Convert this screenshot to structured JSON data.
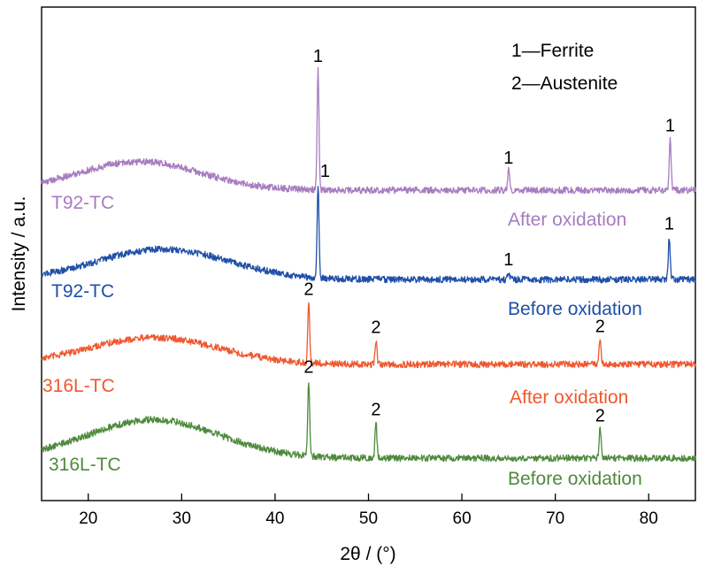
{
  "chart_data": {
    "type": "line",
    "xlabel": "2θ / (°)",
    "ylabel": "Intensity / a.u.",
    "xlim": [
      15,
      85
    ],
    "xticks": [
      20,
      30,
      40,
      50,
      60,
      70,
      80
    ],
    "yticks": "none",
    "grid": false,
    "legend_entries": [
      {
        "text": "1—Ferrite",
        "position": "top-right"
      },
      {
        "text": "2—Austenite",
        "position": "top-right"
      }
    ],
    "series": [
      {
        "label": "T92-TC",
        "condition": "After oxidation",
        "color": "#a77cc0",
        "baseline_level": 3.0,
        "hump": {
          "center": 25.5,
          "height": 0.32,
          "width": 6.5
        },
        "peaks": [
          {
            "x": 44.6,
            "height": 1.35,
            "label": "1"
          },
          {
            "x": 65.0,
            "height": 0.22,
            "label": "1"
          },
          {
            "x": 82.3,
            "height": 0.58,
            "label": "1"
          }
        ]
      },
      {
        "label": "T92-TC",
        "condition": "Before oxidation",
        "color": "#1f4fa8",
        "baseline_level": 2.0,
        "hump": {
          "center": 28.0,
          "height": 0.34,
          "width": 7.0
        },
        "peaks": [
          {
            "x": 44.6,
            "height": 1.05,
            "label": "1"
          },
          {
            "x": 65.0,
            "height": 0.08,
            "label": "1"
          },
          {
            "x": 82.2,
            "height": 0.48,
            "label": "1"
          }
        ]
      },
      {
        "label": "316L-TC",
        "condition": "After oxidation",
        "color": "#f0572e",
        "baseline_level": 1.05,
        "hump": {
          "center": 27.0,
          "height": 0.3,
          "width": 7.0
        },
        "peaks": [
          {
            "x": 43.6,
            "height": 0.68,
            "label": "2"
          },
          {
            "x": 50.8,
            "height": 0.27,
            "label": "2"
          },
          {
            "x": 74.8,
            "height": 0.28,
            "label": "2"
          }
        ]
      },
      {
        "label": "316L-TC",
        "condition": "Before oxidation",
        "color": "#4e8a3c",
        "baseline_level": 0.0,
        "hump": {
          "center": 27.0,
          "height": 0.43,
          "width": 7.0
        },
        "peaks": [
          {
            "x": 43.6,
            "height": 0.85,
            "label": "2"
          },
          {
            "x": 50.8,
            "height": 0.4,
            "label": "2"
          },
          {
            "x": 74.8,
            "height": 0.33,
            "label": "2"
          }
        ]
      }
    ]
  }
}
